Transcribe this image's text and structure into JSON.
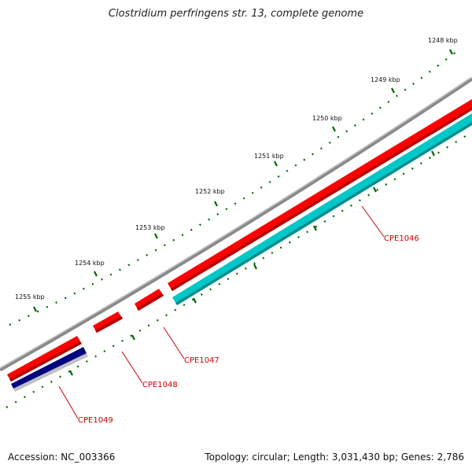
{
  "title": "Clostridium perfringens str. 13, complete genome",
  "footer": {
    "accession": "Accession: NC_003366",
    "summary": "Topology: circular; Length: 3,031,430 bp; Genes: 2,786"
  },
  "ruler": {
    "labels": [
      "1248 kbp",
      "1249 kbp",
      "1250 kbp",
      "1251 kbp",
      "1252 kbp",
      "1253 kbp",
      "1254 kbp",
      "1255 kbp"
    ]
  },
  "genes": [
    {
      "name": "CPE1046",
      "strand": "forward",
      "color": "#ff0000"
    },
    {
      "name": "CPE1047",
      "strand": "forward",
      "color": "#ff0000"
    },
    {
      "name": "CPE1048",
      "strand": "forward",
      "color": "#ff0000"
    },
    {
      "name": "CPE1049",
      "strand": "forward",
      "color": "#ff0000"
    }
  ],
  "colors": {
    "backbone": "#8a8a8a",
    "forward_cds": "#ff0000",
    "reverse_cds": "#00c8c8",
    "reverse_cds_alt": "#000080",
    "tick": "#006600",
    "label": "#cc0000"
  }
}
